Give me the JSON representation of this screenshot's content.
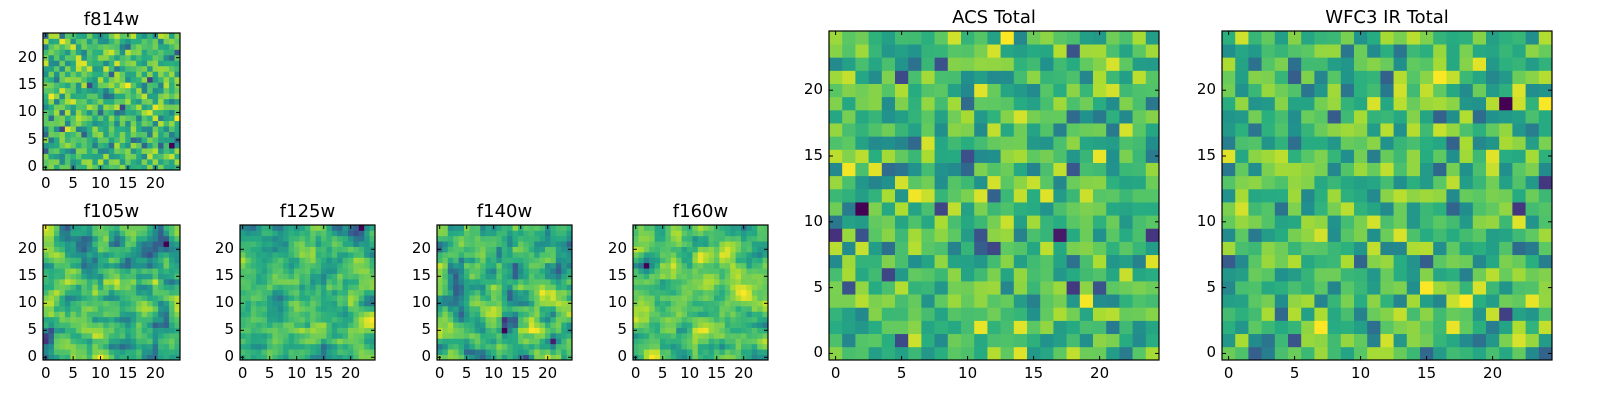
{
  "chart_data": [
    {
      "type": "heatmap",
      "title": "f814w",
      "grid_size": 25,
      "value_range": [
        0,
        1
      ],
      "colormap": "viridis",
      "seed": 11,
      "smoothness": 0,
      "xticks": [
        0,
        5,
        10,
        15,
        20
      ],
      "yticks": [
        0,
        5,
        10,
        15,
        20
      ]
    },
    {
      "type": "heatmap",
      "title": "f105w",
      "grid_size": 25,
      "value_range": [
        0,
        1
      ],
      "colormap": "viridis",
      "seed": 23,
      "smoothness": 1,
      "xticks": [
        0,
        5,
        10,
        15,
        20
      ],
      "yticks": [
        0,
        5,
        10,
        15,
        20
      ]
    },
    {
      "type": "heatmap",
      "title": "f125w",
      "grid_size": 25,
      "value_range": [
        0,
        1
      ],
      "colormap": "viridis",
      "seed": 37,
      "smoothness": 1,
      "xticks": [
        0,
        5,
        10,
        15,
        20
      ],
      "yticks": [
        0,
        5,
        10,
        15,
        20
      ]
    },
    {
      "type": "heatmap",
      "title": "f140w",
      "grid_size": 25,
      "value_range": [
        0,
        1
      ],
      "colormap": "viridis",
      "seed": 41,
      "smoothness": 1,
      "xticks": [
        0,
        5,
        10,
        15,
        20
      ],
      "yticks": [
        0,
        5,
        10,
        15,
        20
      ]
    },
    {
      "type": "heatmap",
      "title": "f160w",
      "grid_size": 25,
      "value_range": [
        0,
        1
      ],
      "colormap": "viridis",
      "seed": 53,
      "smoothness": 1,
      "xticks": [
        0,
        5,
        10,
        15,
        20
      ],
      "yticks": [
        0,
        5,
        10,
        15,
        20
      ]
    },
    {
      "type": "heatmap",
      "title": "ACS Total",
      "grid_size": 25,
      "value_range": [
        0,
        1
      ],
      "colormap": "viridis",
      "seed": 67,
      "smoothness": 0,
      "xticks": [
        0,
        5,
        10,
        15,
        20
      ],
      "yticks": [
        0,
        5,
        10,
        15,
        20
      ]
    },
    {
      "type": "heatmap",
      "title": "WFC3 IR Total",
      "grid_size": 25,
      "value_range": [
        0,
        1
      ],
      "colormap": "viridis",
      "seed": 79,
      "smoothness": 0,
      "xticks": [
        0,
        5,
        10,
        15,
        20
      ],
      "yticks": [
        0,
        5,
        10,
        15,
        20
      ]
    }
  ]
}
